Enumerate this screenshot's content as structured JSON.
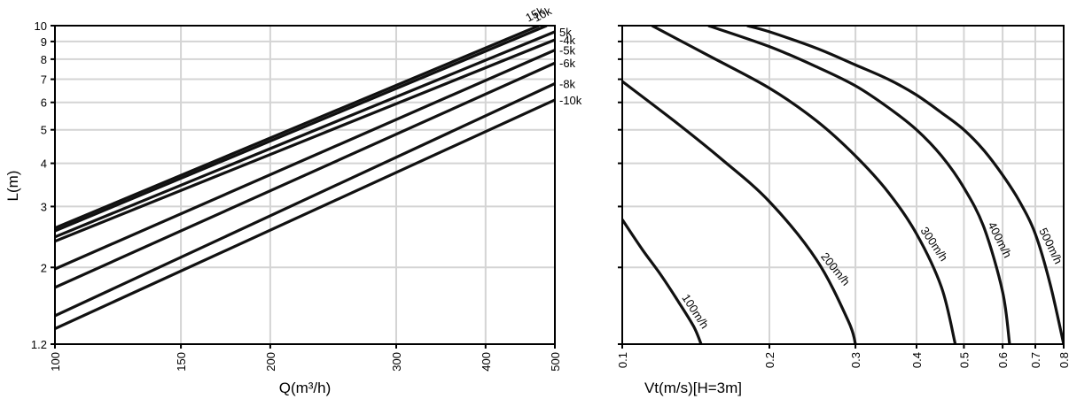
{
  "chart_data": [
    {
      "type": "line",
      "title": "",
      "xlabel": "Q(m³/h)",
      "ylabel": "L(m)",
      "xscale": "log",
      "yscale": "log",
      "xlim": [
        100,
        500
      ],
      "ylim": [
        1.2,
        10
      ],
      "x_ticks": [
        "100",
        "150",
        "200",
        "300",
        "400",
        "500"
      ],
      "y_ticks": [
        "1.2",
        "2",
        "3",
        "4",
        "5",
        "6",
        "7",
        "8",
        "9",
        "10"
      ],
      "grid": true,
      "series": [
        {
          "name": "15k",
          "x": [
            100,
            475
          ],
          "y": [
            2.6,
            10
          ]
        },
        {
          "name": "10k",
          "x": [
            100,
            487
          ],
          "y": [
            2.55,
            10
          ]
        },
        {
          "name": "5k",
          "x": [
            100,
            500
          ],
          "y": [
            2.45,
            9.6
          ]
        },
        {
          "name": "-4k",
          "x": [
            100,
            500
          ],
          "y": [
            2.38,
            9.1
          ]
        },
        {
          "name": "-5k",
          "x": [
            100,
            500
          ],
          "y": [
            1.98,
            8.5
          ]
        },
        {
          "name": "-6k",
          "x": [
            100,
            500
          ],
          "y": [
            1.75,
            7.8
          ]
        },
        {
          "name": "-8k",
          "x": [
            100,
            500
          ],
          "y": [
            1.45,
            6.8
          ]
        },
        {
          "name": "-10k",
          "x": [
            100,
            500
          ],
          "y": [
            1.33,
            6.1
          ]
        }
      ]
    },
    {
      "type": "line",
      "title": "",
      "xlabel": "Vt(m/s)[H=3m]",
      "ylabel": "",
      "xscale": "log",
      "yscale": "log",
      "xlim": [
        0.1,
        0.8
      ],
      "ylim": [
        1.2,
        10
      ],
      "x_ticks": [
        "0.1",
        "0.2",
        "0.3",
        "0.4",
        "0.5",
        "0.6",
        "0.7",
        "0.8"
      ],
      "grid": true,
      "series": [
        {
          "name": "100m/h",
          "x": [
            0.1,
            0.11,
            0.12,
            0.13,
            0.14,
            0.145
          ],
          "y": [
            2.75,
            2.25,
            1.9,
            1.6,
            1.35,
            1.2
          ]
        },
        {
          "name": "200m/h",
          "x": [
            0.1,
            0.13,
            0.16,
            0.2,
            0.25,
            0.29,
            0.3
          ],
          "y": [
            6.9,
            5.2,
            4.1,
            3.1,
            2.1,
            1.4,
            1.2
          ]
        },
        {
          "name": "300m/h",
          "x": [
            0.115,
            0.15,
            0.2,
            0.25,
            0.3,
            0.35,
            0.4,
            0.45,
            0.48
          ],
          "y": [
            10,
            8.2,
            6.6,
            5.3,
            4.2,
            3.3,
            2.5,
            1.75,
            1.2
          ]
        },
        {
          "name": "400m/h",
          "x": [
            0.15,
            0.2,
            0.25,
            0.3,
            0.35,
            0.4,
            0.45,
            0.5,
            0.55,
            0.6,
            0.62
          ],
          "y": [
            10,
            8.7,
            7.6,
            6.7,
            5.8,
            5.0,
            4.2,
            3.4,
            2.6,
            1.7,
            1.2
          ]
        },
        {
          "name": "500m/h",
          "x": [
            0.18,
            0.2,
            0.25,
            0.3,
            0.35,
            0.4,
            0.45,
            0.5,
            0.55,
            0.6,
            0.65,
            0.7,
            0.75,
            0.8
          ],
          "y": [
            10,
            9.6,
            8.6,
            7.7,
            7.0,
            6.3,
            5.6,
            5.0,
            4.35,
            3.7,
            3.1,
            2.5,
            1.8,
            1.2
          ]
        }
      ]
    }
  ]
}
